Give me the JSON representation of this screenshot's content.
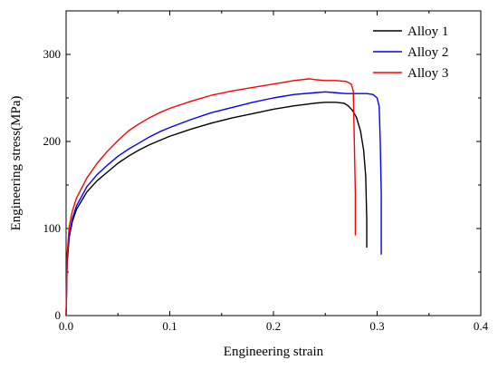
{
  "chart_data": {
    "type": "line",
    "title": "",
    "xlabel": "Engineering strain",
    "ylabel": "Engineering stress(MPa)",
    "xlim": [
      0.0,
      0.4
    ],
    "ylim": [
      0,
      350
    ],
    "x_ticks": [
      0.0,
      0.1,
      0.2,
      0.3,
      0.4
    ],
    "x_tick_labels": [
      "0.0",
      "0.1",
      "0.2",
      "0.3",
      "0.4"
    ],
    "y_ticks": [
      0,
      100,
      200,
      300
    ],
    "y_tick_labels": [
      "0",
      "100",
      "200",
      "300"
    ],
    "grid": false,
    "legend_position": "top-right",
    "series": [
      {
        "name": "Alloy 1",
        "color": "#000000",
        "points": [
          [
            0.0,
            0
          ],
          [
            0.001,
            60
          ],
          [
            0.003,
            90
          ],
          [
            0.006,
            108
          ],
          [
            0.01,
            122
          ],
          [
            0.02,
            142
          ],
          [
            0.03,
            155
          ],
          [
            0.04,
            165
          ],
          [
            0.05,
            175
          ],
          [
            0.06,
            183
          ],
          [
            0.07,
            190
          ],
          [
            0.08,
            196
          ],
          [
            0.09,
            201
          ],
          [
            0.1,
            206
          ],
          [
            0.12,
            214
          ],
          [
            0.14,
            221
          ],
          [
            0.16,
            227
          ],
          [
            0.18,
            232
          ],
          [
            0.2,
            237
          ],
          [
            0.22,
            241
          ],
          [
            0.24,
            244
          ],
          [
            0.25,
            245
          ],
          [
            0.26,
            245
          ],
          [
            0.268,
            244
          ],
          [
            0.272,
            241
          ],
          [
            0.276,
            236
          ],
          [
            0.28,
            228
          ],
          [
            0.284,
            212
          ],
          [
            0.287,
            190
          ],
          [
            0.289,
            160
          ],
          [
            0.29,
            110
          ],
          [
            0.29,
            78
          ]
        ]
      },
      {
        "name": "Alloy 2",
        "color": "#0000ff",
        "points": [
          [
            0.0,
            0
          ],
          [
            0.001,
            65
          ],
          [
            0.003,
            92
          ],
          [
            0.006,
            111
          ],
          [
            0.01,
            126
          ],
          [
            0.02,
            148
          ],
          [
            0.03,
            162
          ],
          [
            0.04,
            173
          ],
          [
            0.05,
            183
          ],
          [
            0.06,
            191
          ],
          [
            0.07,
            198
          ],
          [
            0.08,
            205
          ],
          [
            0.09,
            211
          ],
          [
            0.1,
            216
          ],
          [
            0.12,
            225
          ],
          [
            0.14,
            233
          ],
          [
            0.16,
            239
          ],
          [
            0.18,
            245
          ],
          [
            0.2,
            250
          ],
          [
            0.22,
            254
          ],
          [
            0.24,
            256
          ],
          [
            0.25,
            257
          ],
          [
            0.26,
            256
          ],
          [
            0.27,
            255
          ],
          [
            0.28,
            255
          ],
          [
            0.29,
            255
          ],
          [
            0.296,
            254
          ],
          [
            0.3,
            250
          ],
          [
            0.302,
            240
          ],
          [
            0.303,
            200
          ],
          [
            0.304,
            140
          ],
          [
            0.304,
            70
          ]
        ]
      },
      {
        "name": "Alloy 3",
        "color": "#ff0000",
        "points": [
          [
            0.0,
            0
          ],
          [
            0.001,
            70
          ],
          [
            0.003,
            102
          ],
          [
            0.006,
            120
          ],
          [
            0.01,
            135
          ],
          [
            0.02,
            158
          ],
          [
            0.03,
            175
          ],
          [
            0.04,
            189
          ],
          [
            0.05,
            201
          ],
          [
            0.06,
            212
          ],
          [
            0.07,
            220
          ],
          [
            0.08,
            227
          ],
          [
            0.09,
            233
          ],
          [
            0.1,
            238
          ],
          [
            0.12,
            246
          ],
          [
            0.14,
            253
          ],
          [
            0.16,
            258
          ],
          [
            0.18,
            262
          ],
          [
            0.2,
            266
          ],
          [
            0.22,
            270
          ],
          [
            0.235,
            272
          ],
          [
            0.24,
            271
          ],
          [
            0.25,
            270
          ],
          [
            0.26,
            270
          ],
          [
            0.27,
            269
          ],
          [
            0.275,
            266
          ],
          [
            0.277,
            258
          ],
          [
            0.278,
            200
          ],
          [
            0.279,
            140
          ],
          [
            0.279,
            92
          ]
        ]
      }
    ]
  }
}
